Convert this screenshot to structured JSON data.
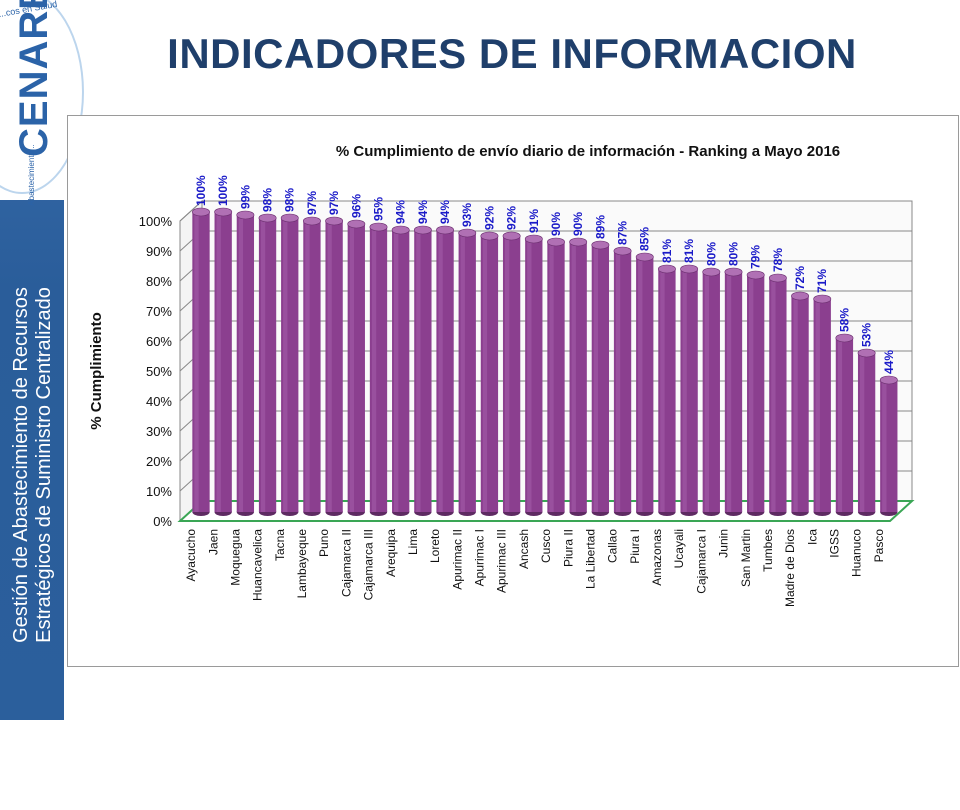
{
  "slide": {
    "title": "INDICADORES DE INFORMACION",
    "sidebar_text_line1": "Gestión de Abastecimiento de Recursos",
    "sidebar_text_line2": "Estratégicos de Suministro Centralizado",
    "logo_text": "CENARES",
    "logo_tagline_top": "...cos en Salud",
    "logo_tagline_bottom": "Abastecimiento..."
  },
  "colors": {
    "sidebar": "#2b5f9c",
    "title": "#1f3f6b",
    "bar_fill": "#8b3f8f",
    "bar_top": "#b070b4",
    "data_label": "#1a1ac8",
    "floor": "#3aa655",
    "grid": "#888888"
  },
  "chart_data": {
    "type": "bar",
    "title": "% Cumplimiento de envío diario de información  - Ranking a Mayo 2016",
    "xlabel": "",
    "ylabel": "% Cumplimiento",
    "ylim": [
      0,
      100
    ],
    "yticks": [
      "0%",
      "10%",
      "20%",
      "30%",
      "40%",
      "50%",
      "60%",
      "70%",
      "80%",
      "90%",
      "100%"
    ],
    "grid": true,
    "legend": "none",
    "categories": [
      "Ayacucho",
      "Jaen",
      "Moquegua",
      "Huancavelica",
      "Tacna",
      "Lambayeque",
      "Puno",
      "Cajamarca II",
      "Cajamarca III",
      "Arequipa",
      "Lima",
      "Loreto",
      "Apurimac II",
      "Apurimac I",
      "Apurimac III",
      "Ancash",
      "Cusco",
      "Piura II",
      "La Libertad",
      "Callao",
      "Piura I",
      "Amazonas",
      "Ucayali",
      "Cajamarca I",
      "Junin",
      "San Martin",
      "Tumbes",
      "Madre de Dios",
      "Ica",
      "IGSS",
      "Huanuco",
      "Pasco"
    ],
    "values": [
      100,
      100,
      99,
      98,
      98,
      97,
      97,
      96,
      95,
      94,
      94,
      94,
      93,
      92,
      92,
      91,
      90,
      90,
      89,
      87,
      85,
      81,
      81,
      80,
      80,
      79,
      78,
      72,
      71,
      58,
      53,
      44
    ],
    "labels": [
      "100%",
      "100%",
      "99%",
      "98%",
      "98%",
      "97%",
      "97%",
      "96%",
      "95%",
      "94%",
      "94%",
      "94%",
      "93%",
      "92%",
      "92%",
      "91%",
      "90%",
      "90%",
      "89%",
      "87%",
      "85%",
      "81%",
      "81%",
      "80%",
      "80%",
      "79%",
      "78%",
      "72%",
      "71%",
      "58%",
      "53%",
      "44%"
    ]
  }
}
